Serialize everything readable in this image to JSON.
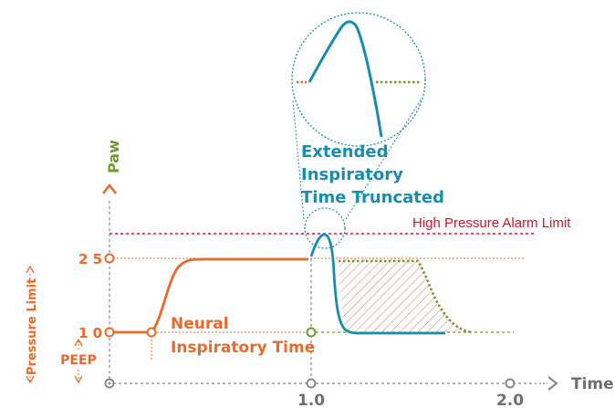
{
  "colors": {
    "orange": "#E8692B",
    "teal": "#1A8CAE",
    "green": "#6E9A2E",
    "red": "#C8182A",
    "gray": "#7F7F7F",
    "hatch": "#E8735A"
  },
  "axes": {
    "y_label": "Paw",
    "x_label": "Time",
    "x_tick_1": "1.0",
    "x_tick_2": "2.0",
    "y_tick_25": "2 5",
    "y_tick_10": "1 0"
  },
  "side_labels": {
    "pressure_limit": "Pressure Limit",
    "peep": "PEEP"
  },
  "annotations": {
    "high_pressure_alarm": "High Pressure Alarm Limit",
    "neural_line1": "Neural",
    "neural_line2": "Inspiratory Time",
    "extended_line1": "Extended",
    "extended_line2": "Inspiratory",
    "extended_line3": "Time Truncated"
  }
}
